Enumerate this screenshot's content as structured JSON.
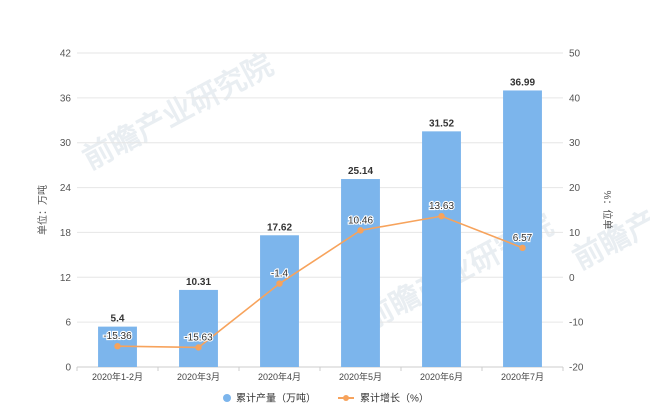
{
  "chart_data": {
    "type": "bar",
    "title": "",
    "categories": [
      "2020年1-2月",
      "2020年3月",
      "2020年4月",
      "2020年5月",
      "2020年6月",
      "2020年7月"
    ],
    "series": [
      {
        "name": "累计产量（万吨）",
        "type": "bar",
        "axis": "left",
        "color": "#7cb5ec",
        "values": [
          5.4,
          10.31,
          17.62,
          25.14,
          31.52,
          36.99
        ]
      },
      {
        "name": "累计增长（%）",
        "type": "line",
        "axis": "right",
        "color": "#f7a35c",
        "values": [
          -15.36,
          -15.63,
          -1.4,
          10.46,
          13.63,
          6.57
        ]
      }
    ],
    "bar_labels": [
      "5.4",
      "10.31",
      "17.62",
      "25.14",
      "31.52",
      "36.99"
    ],
    "line_labels": [
      "-15.36",
      "-15.63",
      "-1.4",
      "10.46",
      "13.63",
      "6.57"
    ],
    "y_left": {
      "label": "单位：万吨",
      "ylim": [
        0,
        42
      ],
      "ticks": [
        "0",
        "6",
        "12",
        "18",
        "24",
        "30",
        "36",
        "42"
      ]
    },
    "y_right": {
      "label": "%：位单",
      "ylim": [
        -20,
        50
      ],
      "ticks": [
        "-20",
        "-10",
        "0",
        "10",
        "20",
        "30",
        "40",
        "50"
      ]
    },
    "grid": true,
    "legend_position": "bottom-center",
    "watermark": "前瞻产业研究院"
  }
}
